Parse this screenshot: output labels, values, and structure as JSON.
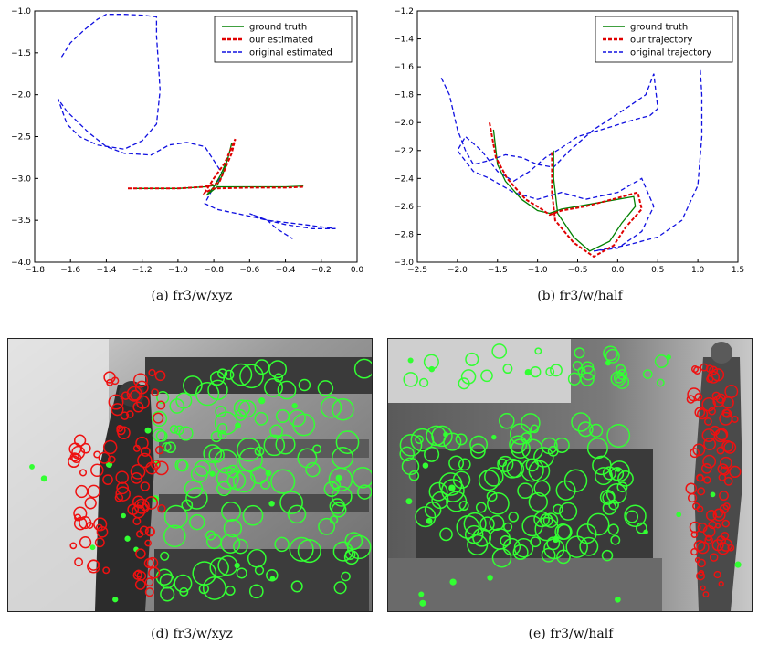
{
  "chart_data": [
    {
      "type": "line",
      "xlim": [
        -1.8,
        0.0
      ],
      "ylim": [
        -4.0,
        -1.0
      ],
      "xticks": [
        "−1.8",
        "−1.6",
        "−1.4",
        "−1.2",
        "−1.0",
        "−0.8",
        "−0.6",
        "−0.4",
        "−0.2",
        "0.0"
      ],
      "yticks": [
        "−1.0",
        "−1.5",
        "−2.0",
        "−2.5",
        "−3.0",
        "−3.5",
        "−4.0"
      ],
      "legend_position": "top-right",
      "series": [
        {
          "name": "ground truth",
          "color": "#008000",
          "dash": "solid",
          "points": [
            [
              -1.25,
              -3.12
            ],
            [
              -1.0,
              -3.12
            ],
            [
              -0.85,
              -3.1
            ],
            [
              -0.78,
              -3.08
            ],
            [
              -0.75,
              -2.95
            ],
            [
              -0.72,
              -2.75
            ],
            [
              -0.7,
              -2.58
            ],
            [
              -0.72,
              -2.75
            ],
            [
              -0.76,
              -2.95
            ],
            [
              -0.8,
              -3.1
            ],
            [
              -0.84,
              -3.2
            ],
            [
              -0.78,
              -3.1
            ],
            [
              -0.6,
              -3.1
            ],
            [
              -0.4,
              -3.1
            ],
            [
              -0.3,
              -3.09
            ]
          ]
        },
        {
          "name": "our estimated",
          "color": "#e00000",
          "dash": "dashed",
          "points": [
            [
              -1.28,
              -3.12
            ],
            [
              -1.0,
              -3.12
            ],
            [
              -0.85,
              -3.1
            ],
            [
              -0.77,
              -3.05
            ],
            [
              -0.74,
              -2.9
            ],
            [
              -0.7,
              -2.7
            ],
            [
              -0.68,
              -2.53
            ],
            [
              -0.74,
              -2.82
            ],
            [
              -0.8,
              -3.0
            ],
            [
              -0.85,
              -3.17
            ],
            [
              -0.8,
              -3.12
            ],
            [
              -0.6,
              -3.11
            ],
            [
              -0.4,
              -3.11
            ],
            [
              -0.3,
              -3.1
            ]
          ]
        },
        {
          "name": "original estimated",
          "color": "#1010e0",
          "dash": "dashed",
          "points": [
            [
              -1.65,
              -1.55
            ],
            [
              -1.6,
              -1.38
            ],
            [
              -1.52,
              -1.22
            ],
            [
              -1.45,
              -1.1
            ],
            [
              -1.4,
              -1.04
            ],
            [
              -1.3,
              -1.04
            ],
            [
              -1.2,
              -1.05
            ],
            [
              -1.12,
              -1.07
            ],
            [
              -1.12,
              -1.3
            ],
            [
              -1.11,
              -1.6
            ],
            [
              -1.1,
              -1.95
            ],
            [
              -1.12,
              -2.35
            ],
            [
              -1.2,
              -2.55
            ],
            [
              -1.3,
              -2.65
            ],
            [
              -1.45,
              -2.6
            ],
            [
              -1.55,
              -2.5
            ],
            [
              -1.62,
              -2.35
            ],
            [
              -1.67,
              -2.05
            ],
            [
              -1.62,
              -2.2
            ],
            [
              -1.5,
              -2.45
            ],
            [
              -1.4,
              -2.62
            ],
            [
              -1.3,
              -2.7
            ],
            [
              -1.15,
              -2.72
            ],
            [
              -1.05,
              -2.6
            ],
            [
              -0.95,
              -2.57
            ],
            [
              -0.85,
              -2.62
            ],
            [
              -0.75,
              -2.95
            ],
            [
              -0.8,
              -3.1
            ],
            [
              -0.85,
              -3.3
            ],
            [
              -0.78,
              -3.37
            ],
            [
              -0.6,
              -3.45
            ],
            [
              -0.4,
              -3.55
            ],
            [
              -0.25,
              -3.6
            ],
            [
              -0.12,
              -3.6
            ],
            [
              -0.3,
              -3.55
            ],
            [
              -0.5,
              -3.5
            ],
            [
              -0.6,
              -3.42
            ],
            [
              -0.5,
              -3.5
            ],
            [
              -0.45,
              -3.6
            ],
            [
              -0.36,
              -3.72
            ]
          ]
        }
      ]
    },
    {
      "type": "line",
      "xlim": [
        -2.5,
        1.5
      ],
      "ylim": [
        -3.0,
        -1.2
      ],
      "xticks": [
        "−2.5",
        "−2.0",
        "−1.5",
        "−1.0",
        "−0.5",
        "0.0",
        "0.5",
        "1.0",
        "1.5"
      ],
      "yticks": [
        "−1.2",
        "−1.4",
        "−1.6",
        "−1.8",
        "−2.0",
        "−2.2",
        "−2.4",
        "−2.6",
        "−2.8",
        "−3.0"
      ],
      "legend_position": "top-right",
      "series": [
        {
          "name": "ground truth",
          "color": "#008000",
          "dash": "solid",
          "points": [
            [
              -1.55,
              -2.05
            ],
            [
              -1.5,
              -2.3
            ],
            [
              -1.4,
              -2.42
            ],
            [
              -1.2,
              -2.55
            ],
            [
              -1.0,
              -2.63
            ],
            [
              -0.85,
              -2.65
            ],
            [
              -0.7,
              -2.62
            ],
            [
              -0.5,
              -2.6
            ],
            [
              -0.2,
              -2.57
            ],
            [
              0.0,
              -2.55
            ],
            [
              0.2,
              -2.53
            ],
            [
              0.22,
              -2.6
            ],
            [
              0.05,
              -2.72
            ],
            [
              -0.1,
              -2.85
            ],
            [
              -0.35,
              -2.92
            ],
            [
              -0.55,
              -2.82
            ],
            [
              -0.75,
              -2.65
            ],
            [
              -0.8,
              -2.4
            ],
            [
              -0.8,
              -2.2
            ]
          ]
        },
        {
          "name": "our trajectory",
          "color": "#e00000",
          "dash": "dashed",
          "points": [
            [
              -1.6,
              -2.0
            ],
            [
              -1.52,
              -2.25
            ],
            [
              -1.38,
              -2.4
            ],
            [
              -1.15,
              -2.55
            ],
            [
              -0.95,
              -2.62
            ],
            [
              -0.85,
              -2.66
            ],
            [
              -0.7,
              -2.63
            ],
            [
              -0.4,
              -2.6
            ],
            [
              0.0,
              -2.54
            ],
            [
              0.25,
              -2.5
            ],
            [
              0.3,
              -2.62
            ],
            [
              0.1,
              -2.75
            ],
            [
              -0.05,
              -2.88
            ],
            [
              -0.3,
              -2.96
            ],
            [
              -0.55,
              -2.86
            ],
            [
              -0.78,
              -2.7
            ],
            [
              -0.82,
              -2.5
            ],
            [
              -0.82,
              -2.2
            ]
          ]
        },
        {
          "name": "original trajectory",
          "color": "#1010e0",
          "dash": "dashed",
          "points": [
            [
              -2.2,
              -1.68
            ],
            [
              -2.1,
              -1.8
            ],
            [
              -2.0,
              -2.05
            ],
            [
              -1.9,
              -2.2
            ],
            [
              -1.8,
              -2.3
            ],
            [
              -1.6,
              -2.27
            ],
            [
              -1.4,
              -2.23
            ],
            [
              -1.2,
              -2.25
            ],
            [
              -1.0,
              -2.3
            ],
            [
              -0.8,
              -2.32
            ],
            [
              -0.6,
              -2.2
            ],
            [
              -0.3,
              -2.05
            ],
            [
              0.1,
              -1.9
            ],
            [
              0.35,
              -1.8
            ],
            [
              0.45,
              -1.65
            ],
            [
              0.5,
              -1.9
            ],
            [
              0.4,
              -1.95
            ],
            [
              0.2,
              -1.98
            ],
            [
              -0.2,
              -2.05
            ],
            [
              -0.5,
              -2.1
            ],
            [
              -0.7,
              -2.18
            ],
            [
              -0.9,
              -2.25
            ],
            [
              -1.1,
              -2.35
            ],
            [
              -1.3,
              -2.42
            ],
            [
              -1.5,
              -2.35
            ],
            [
              -1.7,
              -2.2
            ],
            [
              -1.9,
              -2.1
            ],
            [
              -2.0,
              -2.2
            ],
            [
              -1.8,
              -2.35
            ],
            [
              -1.6,
              -2.4
            ],
            [
              -1.3,
              -2.5
            ],
            [
              -1.0,
              -2.55
            ],
            [
              -0.7,
              -2.5
            ],
            [
              -0.4,
              -2.55
            ],
            [
              0.0,
              -2.5
            ],
            [
              0.3,
              -2.4
            ],
            [
              0.45,
              -2.6
            ],
            [
              0.3,
              -2.78
            ],
            [
              0.0,
              -2.9
            ],
            [
              -0.3,
              -2.92
            ],
            [
              0.1,
              -2.88
            ],
            [
              0.5,
              -2.82
            ],
            [
              0.8,
              -2.7
            ],
            [
              1.0,
              -2.45
            ],
            [
              1.05,
              -2.1
            ],
            [
              1.05,
              -1.8
            ],
            [
              1.03,
              -1.62
            ]
          ]
        }
      ]
    }
  ],
  "captions": {
    "a": "(a)  fr3/w/xyz",
    "b": "(b)  fr3/w/half",
    "d": "(d)  fr3/w/xyz",
    "e": "(e)  fr3/w/half"
  },
  "colors": {
    "ground_truth": "#008000",
    "estimated": "#e00000",
    "original": "#1010e0",
    "static_feature": "#33ff33",
    "dynamic_feature": "#ee1111"
  }
}
